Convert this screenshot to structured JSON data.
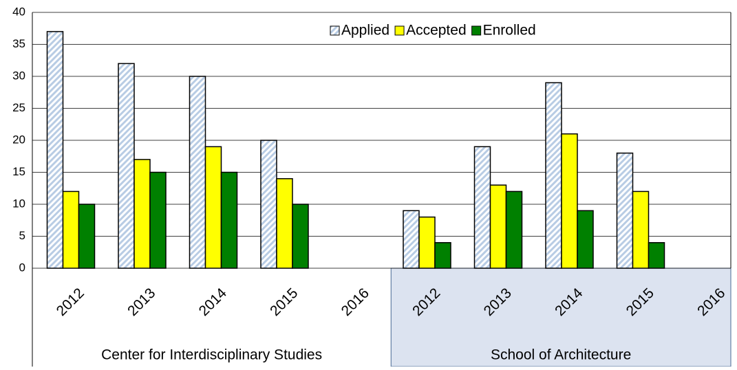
{
  "chart_data": {
    "type": "bar",
    "groups": [
      {
        "name": "Center for Interdisciplinary Studies",
        "categories": [
          "2012",
          "2013",
          "2014",
          "2015",
          "2016"
        ]
      },
      {
        "name": "School of Architecture",
        "categories": [
          "2012",
          "2013",
          "2014",
          "2015",
          "2016"
        ]
      }
    ],
    "series": [
      {
        "name": "Applied",
        "color": "#b8cce4",
        "pattern": "hatch",
        "values": [
          37,
          32,
          30,
          20,
          null,
          9,
          19,
          29,
          18,
          null
        ]
      },
      {
        "name": "Accepted",
        "color": "#ffff00",
        "values": [
          12,
          17,
          19,
          14,
          null,
          8,
          13,
          21,
          12,
          null
        ]
      },
      {
        "name": "Enrolled",
        "color": "#008000",
        "values": [
          10,
          15,
          15,
          10,
          null,
          4,
          12,
          9,
          4,
          null
        ]
      }
    ],
    "ylim": [
      0,
      40
    ],
    "yticks": [
      0,
      5,
      10,
      15,
      20,
      25,
      30,
      35,
      40
    ],
    "grid": true,
    "legend": "top-right"
  }
}
